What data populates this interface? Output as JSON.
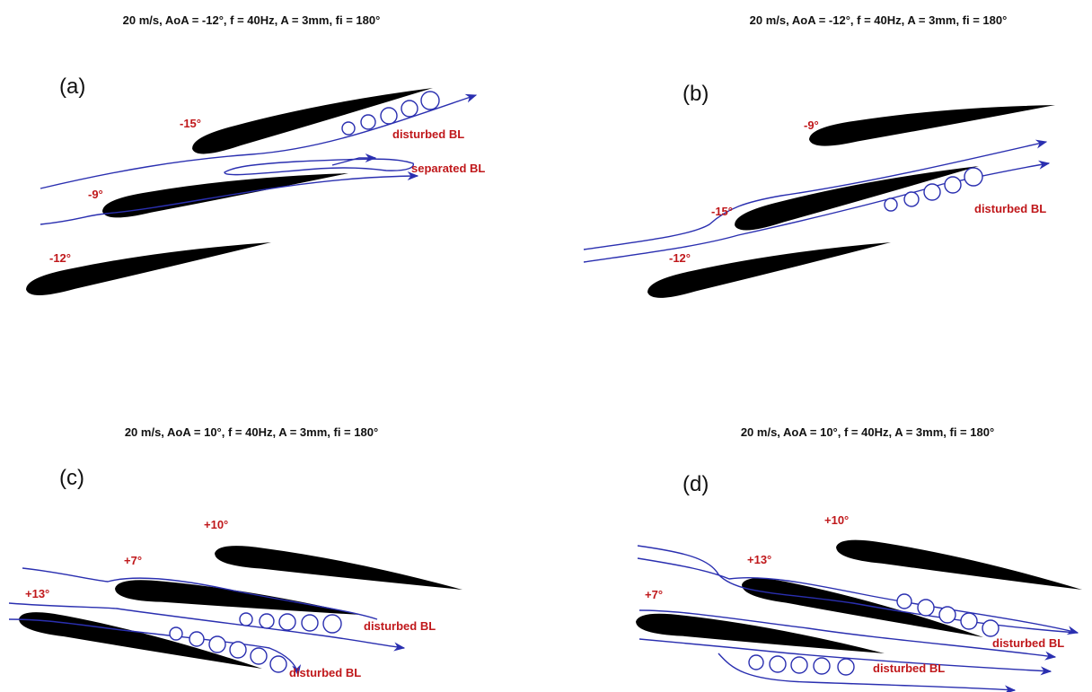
{
  "panels": [
    {
      "title": "20 m/s, AoA = -12°, f = 40Hz, A = 3mm, fi = 180°",
      "label": "(a)",
      "angles": [
        "-15°",
        "-9°",
        "-12°"
      ],
      "annotations": [
        "disturbed BL",
        "separated BL"
      ]
    },
    {
      "title": "20 m/s, AoA = -12°, f = 40Hz, A = 3mm, fi = 180°",
      "label": "(b)",
      "angles": [
        "-9°",
        "-15°",
        "-12°"
      ],
      "annotations": [
        "disturbed BL"
      ]
    },
    {
      "title": "20 m/s, AoA = 10°, f = 40Hz, A = 3mm, fi = 180°",
      "label": "(c)",
      "angles": [
        "+10°",
        "+7°",
        "+13°"
      ],
      "annotations": [
        "disturbed BL",
        "disturbed BL"
      ]
    },
    {
      "title": "20 m/s, AoA = 10°, f = 40Hz, A = 3mm, fi = 180°",
      "label": "(d)",
      "angles": [
        "+10°",
        "+13°",
        "+7°"
      ],
      "annotations": [
        "disturbed BL",
        "disturbed BL"
      ]
    }
  ]
}
